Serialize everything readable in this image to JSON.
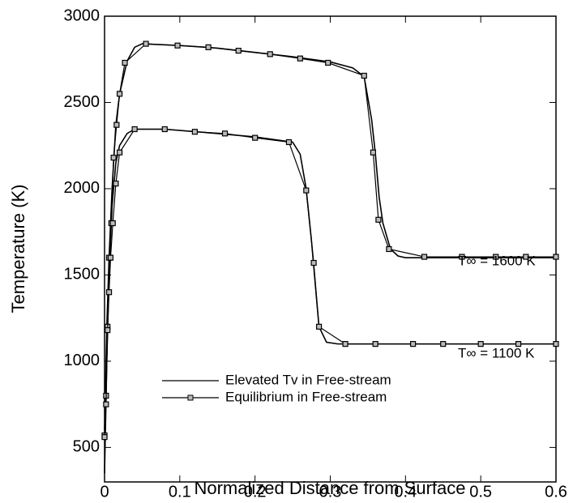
{
  "chart_data": {
    "type": "line",
    "xlabel": "Normalized Distance from Surface",
    "ylabel": "Temperature (K)",
    "xlim": [
      0,
      0.6
    ],
    "xticks": [
      0,
      0.1,
      0.2,
      0.3,
      0.4,
      0.5,
      0.6
    ],
    "ylim": [
      300,
      3000
    ],
    "yticks": [
      500,
      1000,
      1500,
      2000,
      2500,
      3000
    ],
    "annotations": [
      "T∞ = 1600 K",
      "T∞ = 1100 K"
    ],
    "series": [
      {
        "name": "Elevated Tv in Free-stream",
        "color": "#000000",
        "marker": false,
        "lines": [
          {
            "x": [
              0,
              0.003,
              0.006,
              0.01,
              0.015,
              0.02,
              0.03,
              0.04,
              0.05,
              0.1,
              0.15,
              0.2,
              0.25,
              0.3,
              0.33,
              0.345,
              0.355,
              0.36,
              0.365,
              0.37,
              0.38,
              0.39,
              0.4,
              0.6
            ],
            "values": [
              600,
              1200,
              1600,
              2000,
              2370,
              2550,
              2740,
              2820,
              2840,
              2830,
              2815,
              2790,
              2765,
              2735,
              2700,
              2650,
              2400,
              2200,
              1950,
              1800,
              1650,
              1610,
              1600,
              1600
            ]
          },
          {
            "x": [
              0,
              0.003,
              0.006,
              0.01,
              0.015,
              0.02,
              0.03,
              0.04,
              0.08,
              0.15,
              0.2,
              0.25,
              0.26,
              0.268,
              0.275,
              0.28,
              0.285,
              0.295,
              0.31,
              0.6
            ],
            "values": [
              350,
              1000,
              1500,
              1900,
              2150,
              2250,
              2320,
              2345,
              2345,
              2320,
              2300,
              2270,
              2200,
              2000,
              1700,
              1450,
              1200,
              1110,
              1100,
              1100
            ]
          }
        ]
      },
      {
        "name": "Equilibrium in Free-stream",
        "color": "#000000",
        "marker": true,
        "lines": [
          {
            "x": [
              0,
              0.002,
              0.004,
              0.006,
              0.009,
              0.012,
              0.016,
              0.02,
              0.027,
              0.055,
              0.097,
              0.138,
              0.178,
              0.22,
              0.26,
              0.297,
              0.345,
              0.357,
              0.364,
              0.378,
              0.425,
              0.475,
              0.52,
              0.56,
              0.6
            ],
            "values": [
              570,
              800,
              1200,
              1600,
              1800,
              2180,
              2370,
              2550,
              2730,
              2840,
              2830,
              2820,
              2800,
              2780,
              2755,
              2730,
              2655,
              2210,
              1820,
              1650,
              1605,
              1605,
              1605,
              1605,
              1605
            ]
          },
          {
            "x": [
              0,
              0.002,
              0.004,
              0.006,
              0.008,
              0.011,
              0.015,
              0.02,
              0.04,
              0.08,
              0.12,
              0.16,
              0.2,
              0.245,
              0.268,
              0.278,
              0.285,
              0.32,
              0.36,
              0.41,
              0.45,
              0.5,
              0.55,
              0.6
            ],
            "values": [
              560,
              750,
              1180,
              1400,
              1600,
              1800,
              2030,
              2210,
              2345,
              2345,
              2330,
              2320,
              2295,
              2270,
              1990,
              1570,
              1200,
              1100,
              1100,
              1100,
              1100,
              1100,
              1100,
              1100
            ]
          }
        ]
      }
    ]
  }
}
